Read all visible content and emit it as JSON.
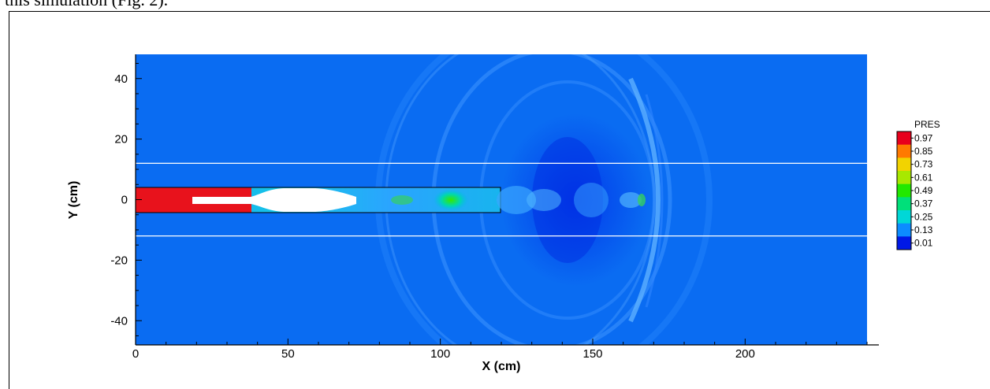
{
  "caption": "this simulation (Fig. 2).",
  "chart_data": {
    "type": "heatmap",
    "title": "",
    "xlabel": "X (cm)",
    "ylabel": "Y (cm)",
    "xlim": [
      0,
      240
    ],
    "ylim": [
      -48,
      48
    ],
    "xticks": [
      0,
      50,
      100,
      150,
      200
    ],
    "yticks": [
      -40,
      -20,
      0,
      20,
      40
    ],
    "colorbar": {
      "title": "PRES",
      "levels": [
        0.97,
        0.85,
        0.73,
        0.61,
        0.49,
        0.37,
        0.25,
        0.13,
        0.01
      ],
      "colors": [
        "#e8001c",
        "#ff7a00",
        "#f2d300",
        "#a8e800",
        "#22e800",
        "#00e07a",
        "#00d7d7",
        "#0c8cff",
        "#0018e6"
      ]
    },
    "background_color": "#0a6cf2",
    "guide_lines_y": [
      12,
      -12
    ]
  }
}
